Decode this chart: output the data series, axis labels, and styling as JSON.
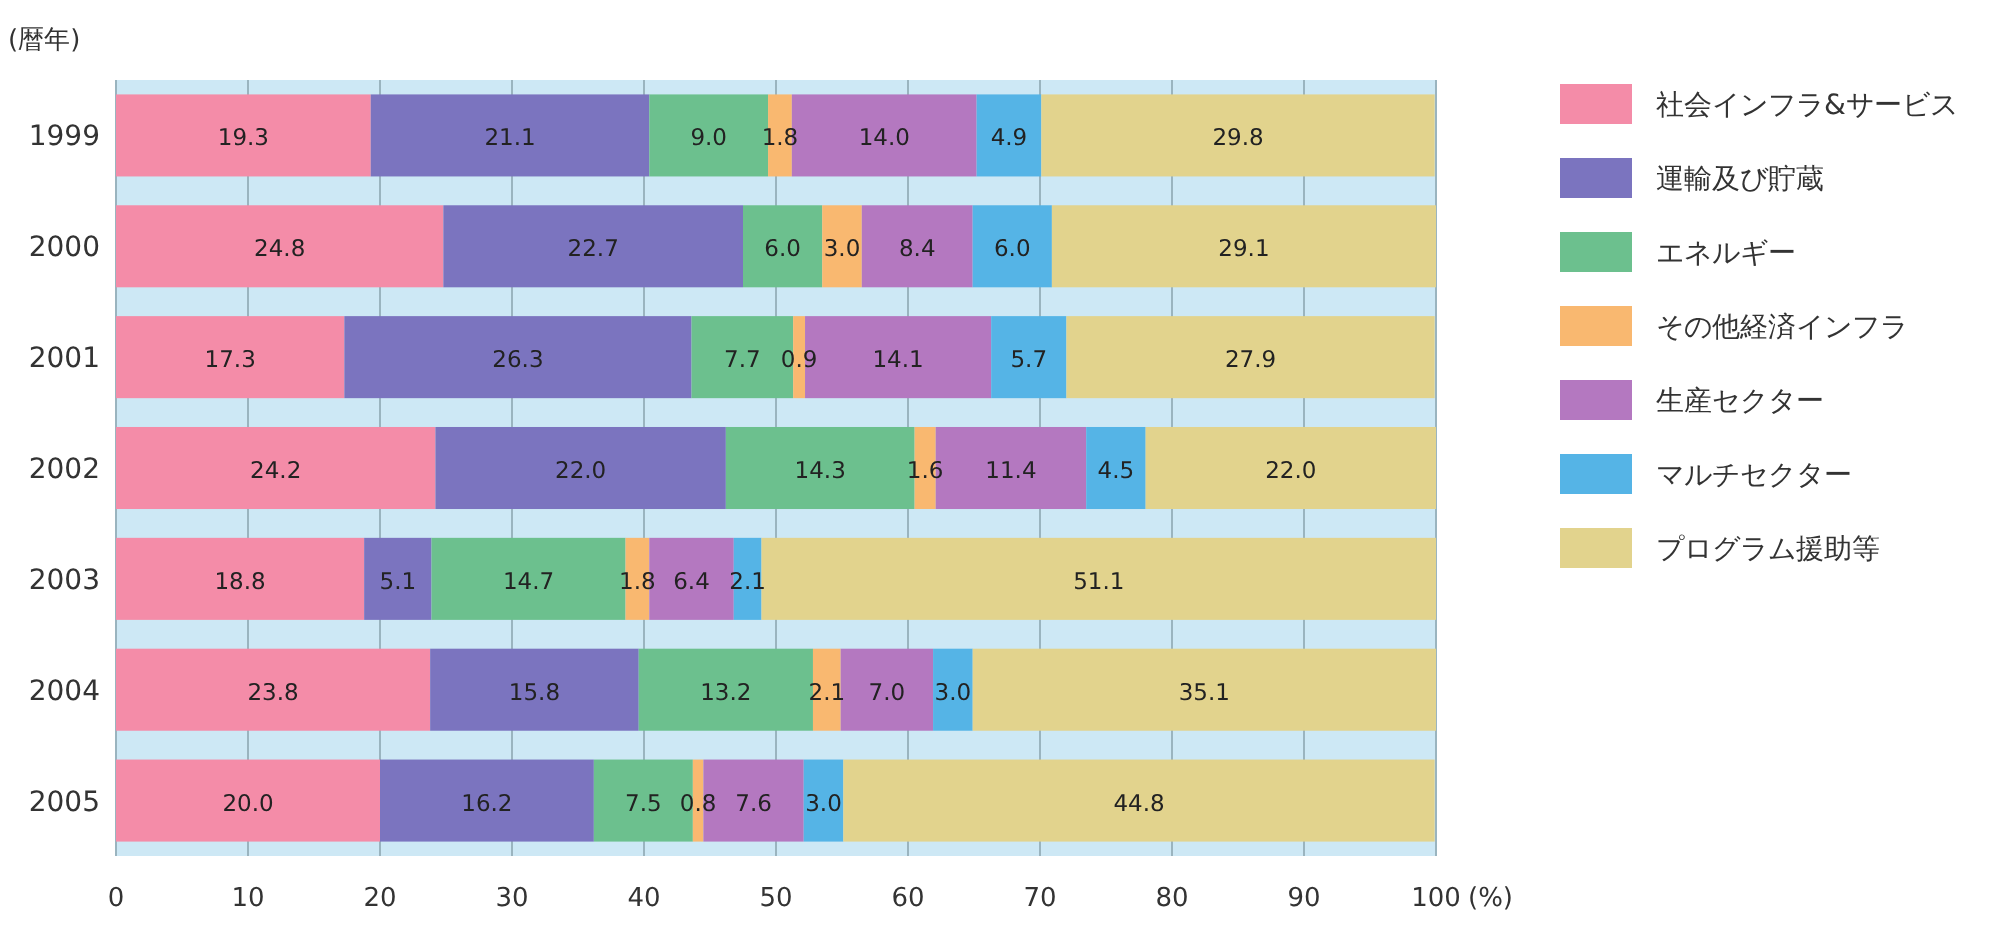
{
  "chart_data": {
    "type": "bar",
    "orientation": "horizontal",
    "stacked": true,
    "ylabel": "(暦年)",
    "xlabel": "(%)",
    "categories": [
      "1999",
      "2000",
      "2001",
      "2002",
      "2003",
      "2004",
      "2005"
    ],
    "series": [
      {
        "name": "社会インフラ&サービス",
        "color": "#f48ca8",
        "values": [
          19.3,
          24.8,
          17.3,
          24.2,
          18.8,
          23.8,
          20.0
        ],
        "value_labels": [
          "19.3",
          "24.8",
          "17.3",
          "24.2",
          "18.8",
          "23.8",
          "20.0"
        ]
      },
      {
        "name": "運輸及び貯蔵",
        "color": "#7b74bf",
        "values": [
          21.1,
          22.7,
          26.3,
          22.0,
          5.1,
          15.8,
          16.2
        ],
        "value_labels": [
          "21.1",
          "22.7",
          "26.3",
          "22.0",
          "5.1",
          "15.8",
          "16.2"
        ]
      },
      {
        "name": "エネルギー",
        "color": "#6cc08e",
        "values": [
          9.0,
          6.0,
          7.7,
          14.3,
          14.7,
          13.2,
          7.5
        ],
        "value_labels": [
          "9.0",
          "6.0",
          "7.7",
          "14.3",
          "14.7",
          "13.2",
          "7.5"
        ]
      },
      {
        "name": "その他経済インフラ",
        "color": "#f9b870",
        "values": [
          1.8,
          3.0,
          0.9,
          1.6,
          1.8,
          2.1,
          0.8
        ],
        "value_labels": [
          "1.8",
          "3.0",
          "0.9",
          "1.6",
          "1.8",
          "2.1",
          "0.8"
        ]
      },
      {
        "name": "生産セクター",
        "color": "#b478c0",
        "values": [
          14.0,
          8.4,
          14.1,
          11.4,
          6.4,
          7.0,
          7.6
        ],
        "value_labels": [
          "14.0",
          "8.4",
          "14.1",
          "11.4",
          "6.4",
          "7.0",
          "7.6"
        ]
      },
      {
        "name": "マルチセクター",
        "color": "#55b4e6",
        "values": [
          4.9,
          6.0,
          5.7,
          4.5,
          2.1,
          3.0,
          3.0
        ],
        "value_labels": [
          "4.9",
          "6.0",
          "5.7",
          "4.5",
          "2.1",
          "3.0",
          "3.0"
        ]
      },
      {
        "name": "プログラム援助等",
        "color": "#e2d38d",
        "values": [
          29.8,
          29.1,
          27.9,
          22.0,
          51.1,
          35.1,
          44.8
        ],
        "value_labels": [
          "29.8",
          "29.1",
          "27.9",
          "22.0",
          "51.1",
          "35.1",
          "44.8"
        ]
      }
    ],
    "xlim": [
      0,
      100
    ],
    "xticks": [
      0,
      10,
      20,
      30,
      40,
      50,
      60,
      70,
      80,
      90,
      100
    ],
    "grid": "x",
    "legend": "right"
  }
}
